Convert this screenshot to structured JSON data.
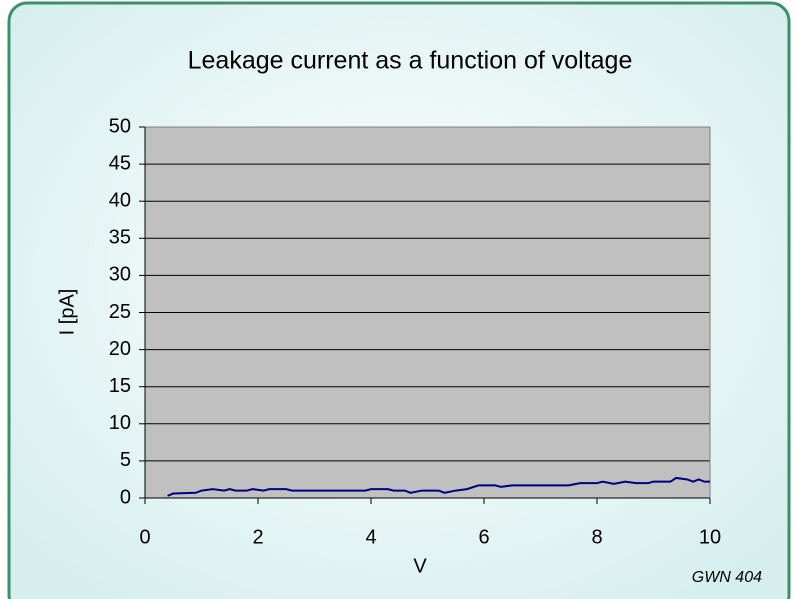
{
  "chart_data": {
    "type": "line",
    "title": "Leakage current as a function of voltage",
    "xlabel": "V",
    "ylabel": "I [pA]",
    "annotation": "GWN 404",
    "x": [
      0.4,
      0.5,
      0.9,
      1.0,
      1.2,
      1.4,
      1.5,
      1.6,
      1.8,
      1.9,
      2.1,
      2.2,
      2.5,
      2.6,
      3.0,
      3.5,
      3.9,
      4.0,
      4.3,
      4.4,
      4.6,
      4.7,
      4.9,
      5.2,
      5.3,
      5.5,
      5.7,
      5.9,
      6.2,
      6.3,
      6.5,
      7.0,
      7.5,
      7.7,
      8.0,
      8.1,
      8.3,
      8.5,
      8.7,
      8.9,
      9.0,
      9.3,
      9.4,
      9.6,
      9.7,
      9.8,
      9.9,
      10.0
    ],
    "series": [
      {
        "name": "I",
        "color": "#000080",
        "values": [
          0.3,
          0.6,
          0.7,
          1.0,
          1.2,
          1.0,
          1.2,
          1.0,
          1.0,
          1.2,
          1.0,
          1.2,
          1.2,
          1.0,
          1.0,
          1.0,
          1.0,
          1.2,
          1.2,
          1.0,
          1.0,
          0.7,
          1.0,
          1.0,
          0.7,
          1.0,
          1.2,
          1.7,
          1.7,
          1.5,
          1.7,
          1.7,
          1.7,
          2.0,
          2.0,
          2.2,
          1.9,
          2.2,
          2.0,
          2.0,
          2.2,
          2.2,
          2.7,
          2.5,
          2.2,
          2.5,
          2.2,
          2.2
        ]
      }
    ],
    "xlim": [
      0,
      10
    ],
    "xticks": [
      0,
      2,
      4,
      6,
      8,
      10
    ],
    "ylim": [
      0,
      50
    ],
    "yticks": [
      0,
      5,
      10,
      15,
      20,
      25,
      30,
      35,
      40,
      45,
      50
    ],
    "grid": true
  }
}
